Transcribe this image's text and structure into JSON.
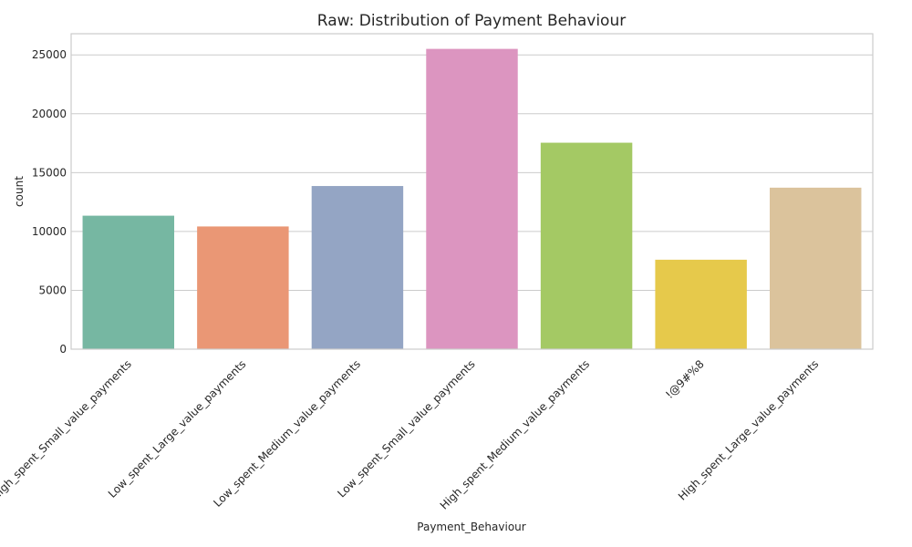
{
  "chart_data": {
    "type": "bar",
    "title": "Raw: Distribution of Payment Behaviour",
    "xlabel": "Payment_Behaviour",
    "ylabel": "count",
    "categories": [
      "High_spent_Small_value_payments",
      "Low_spent_Large_value_payments",
      "Low_spent_Medium_value_payments",
      "Low_spent_Small_value_payments",
      "High_spent_Medium_value_payments",
      "!@9#%8",
      "High_spent_Large_value_payments"
    ],
    "values": [
      11340,
      10425,
      13861,
      25513,
      17540,
      7600,
      13721
    ],
    "colors": [
      "#76b7a2",
      "#ea9775",
      "#94a5c4",
      "#dc95c0",
      "#a4c964",
      "#e6c94b",
      "#dbc39c"
    ],
    "ylim": [
      0,
      26800
    ],
    "yticks": [
      0,
      5000,
      10000,
      15000,
      20000,
      25000
    ],
    "grid": "horizontal"
  }
}
